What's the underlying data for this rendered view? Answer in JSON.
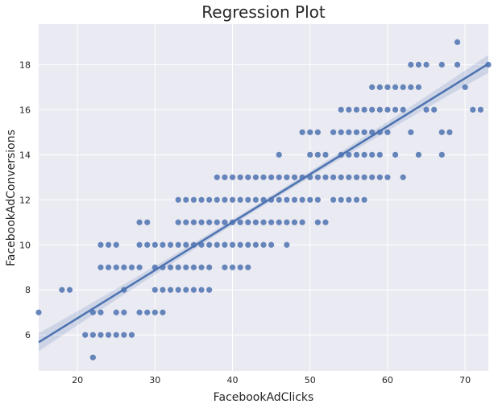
{
  "chart_data": {
    "type": "scatter",
    "title": "Regression Plot",
    "xlabel": "FacebookAdClicks",
    "ylabel": "FacebookAdConversions",
    "xlim": [
      15,
      73
    ],
    "ylim": [
      4.4,
      19.8
    ],
    "xticks": [
      "20",
      "30",
      "40",
      "50",
      "60",
      "70"
    ],
    "yticks": [
      "6",
      "8",
      "10",
      "12",
      "14",
      "16",
      "18"
    ],
    "grid": true,
    "background": "#eaeaf2",
    "point_color": "#4c72b0",
    "regression": {
      "slope": 0.2131,
      "intercept": 2.48,
      "x_range": [
        15,
        73
      ]
    },
    "points": [
      [
        15,
        7
      ],
      [
        18,
        8
      ],
      [
        19,
        8
      ],
      [
        21,
        6
      ],
      [
        22,
        5
      ],
      [
        22,
        6
      ],
      [
        22,
        7
      ],
      [
        23,
        6
      ],
      [
        23,
        7
      ],
      [
        23,
        9
      ],
      [
        23,
        10
      ],
      [
        24,
        6
      ],
      [
        24,
        9
      ],
      [
        24,
        10
      ],
      [
        25,
        6
      ],
      [
        25,
        7
      ],
      [
        25,
        9
      ],
      [
        25,
        10
      ],
      [
        26,
        6
      ],
      [
        26,
        7
      ],
      [
        26,
        8
      ],
      [
        26,
        9
      ],
      [
        27,
        6
      ],
      [
        27,
        9
      ],
      [
        28,
        7
      ],
      [
        28,
        9
      ],
      [
        28,
        10
      ],
      [
        28,
        11
      ],
      [
        29,
        7
      ],
      [
        29,
        10
      ],
      [
        29,
        11
      ],
      [
        30,
        7
      ],
      [
        30,
        8
      ],
      [
        30,
        9
      ],
      [
        30,
        10
      ],
      [
        31,
        7
      ],
      [
        31,
        8
      ],
      [
        31,
        9
      ],
      [
        31,
        10
      ],
      [
        32,
        8
      ],
      [
        32,
        9
      ],
      [
        32,
        10
      ],
      [
        33,
        8
      ],
      [
        33,
        9
      ],
      [
        33,
        10
      ],
      [
        33,
        11
      ],
      [
        33,
        12
      ],
      [
        34,
        8
      ],
      [
        34,
        9
      ],
      [
        34,
        10
      ],
      [
        34,
        11
      ],
      [
        34,
        12
      ],
      [
        35,
        8
      ],
      [
        35,
        9
      ],
      [
        35,
        10
      ],
      [
        35,
        11
      ],
      [
        35,
        12
      ],
      [
        36,
        8
      ],
      [
        36,
        9
      ],
      [
        36,
        10
      ],
      [
        36,
        11
      ],
      [
        36,
        12
      ],
      [
        37,
        8
      ],
      [
        37,
        9
      ],
      [
        37,
        10
      ],
      [
        37,
        11
      ],
      [
        37,
        12
      ],
      [
        38,
        10
      ],
      [
        38,
        11
      ],
      [
        38,
        12
      ],
      [
        38,
        13
      ],
      [
        39,
        9
      ],
      [
        39,
        10
      ],
      [
        39,
        11
      ],
      [
        39,
        12
      ],
      [
        39,
        13
      ],
      [
        40,
        9
      ],
      [
        40,
        10
      ],
      [
        40,
        11
      ],
      [
        40,
        12
      ],
      [
        40,
        13
      ],
      [
        41,
        9
      ],
      [
        41,
        10
      ],
      [
        41,
        11
      ],
      [
        41,
        12
      ],
      [
        41,
        13
      ],
      [
        42,
        9
      ],
      [
        42,
        10
      ],
      [
        42,
        11
      ],
      [
        42,
        12
      ],
      [
        42,
        13
      ],
      [
        43,
        10
      ],
      [
        43,
        11
      ],
      [
        43,
        12
      ],
      [
        43,
        13
      ],
      [
        44,
        10
      ],
      [
        44,
        11
      ],
      [
        44,
        12
      ],
      [
        44,
        13
      ],
      [
        45,
        10
      ],
      [
        45,
        11
      ],
      [
        45,
        12
      ],
      [
        45,
        13
      ],
      [
        46,
        11
      ],
      [
        46,
        12
      ],
      [
        46,
        13
      ],
      [
        46,
        14
      ],
      [
        47,
        10
      ],
      [
        47,
        11
      ],
      [
        47,
        12
      ],
      [
        47,
        13
      ],
      [
        48,
        11
      ],
      [
        48,
        12
      ],
      [
        48,
        13
      ],
      [
        49,
        11
      ],
      [
        49,
        12
      ],
      [
        49,
        13
      ],
      [
        49,
        15
      ],
      [
        50,
        12
      ],
      [
        50,
        13
      ],
      [
        50,
        14
      ],
      [
        50,
        15
      ],
      [
        51,
        11
      ],
      [
        51,
        12
      ],
      [
        51,
        13
      ],
      [
        51,
        14
      ],
      [
        51,
        15
      ],
      [
        52,
        11
      ],
      [
        52,
        13
      ],
      [
        52,
        14
      ],
      [
        53,
        12
      ],
      [
        53,
        13
      ],
      [
        53,
        15
      ],
      [
        54,
        12
      ],
      [
        54,
        13
      ],
      [
        54,
        14
      ],
      [
        54,
        15
      ],
      [
        54,
        16
      ],
      [
        55,
        12
      ],
      [
        55,
        13
      ],
      [
        55,
        14
      ],
      [
        55,
        15
      ],
      [
        55,
        16
      ],
      [
        56,
        12
      ],
      [
        56,
        13
      ],
      [
        56,
        14
      ],
      [
        56,
        15
      ],
      [
        56,
        16
      ],
      [
        57,
        12
      ],
      [
        57,
        13
      ],
      [
        57,
        14
      ],
      [
        57,
        15
      ],
      [
        57,
        16
      ],
      [
        58,
        13
      ],
      [
        58,
        14
      ],
      [
        58,
        15
      ],
      [
        58,
        16
      ],
      [
        58,
        17
      ],
      [
        59,
        13
      ],
      [
        59,
        14
      ],
      [
        59,
        15
      ],
      [
        59,
        16
      ],
      [
        59,
        17
      ],
      [
        60,
        13
      ],
      [
        60,
        15
      ],
      [
        60,
        16
      ],
      [
        60,
        17
      ],
      [
        61,
        14
      ],
      [
        61,
        16
      ],
      [
        61,
        17
      ],
      [
        62,
        13
      ],
      [
        62,
        16
      ],
      [
        62,
        17
      ],
      [
        63,
        15
      ],
      [
        63,
        17
      ],
      [
        63,
        18
      ],
      [
        64,
        14
      ],
      [
        64,
        17
      ],
      [
        64,
        18
      ],
      [
        65,
        16
      ],
      [
        65,
        18
      ],
      [
        66,
        16
      ],
      [
        67,
        14
      ],
      [
        67,
        15
      ],
      [
        67,
        18
      ],
      [
        68,
        15
      ],
      [
        69,
        18
      ],
      [
        69,
        19
      ],
      [
        70,
        17
      ],
      [
        71,
        16
      ],
      [
        72,
        16
      ],
      [
        73,
        18
      ]
    ]
  }
}
